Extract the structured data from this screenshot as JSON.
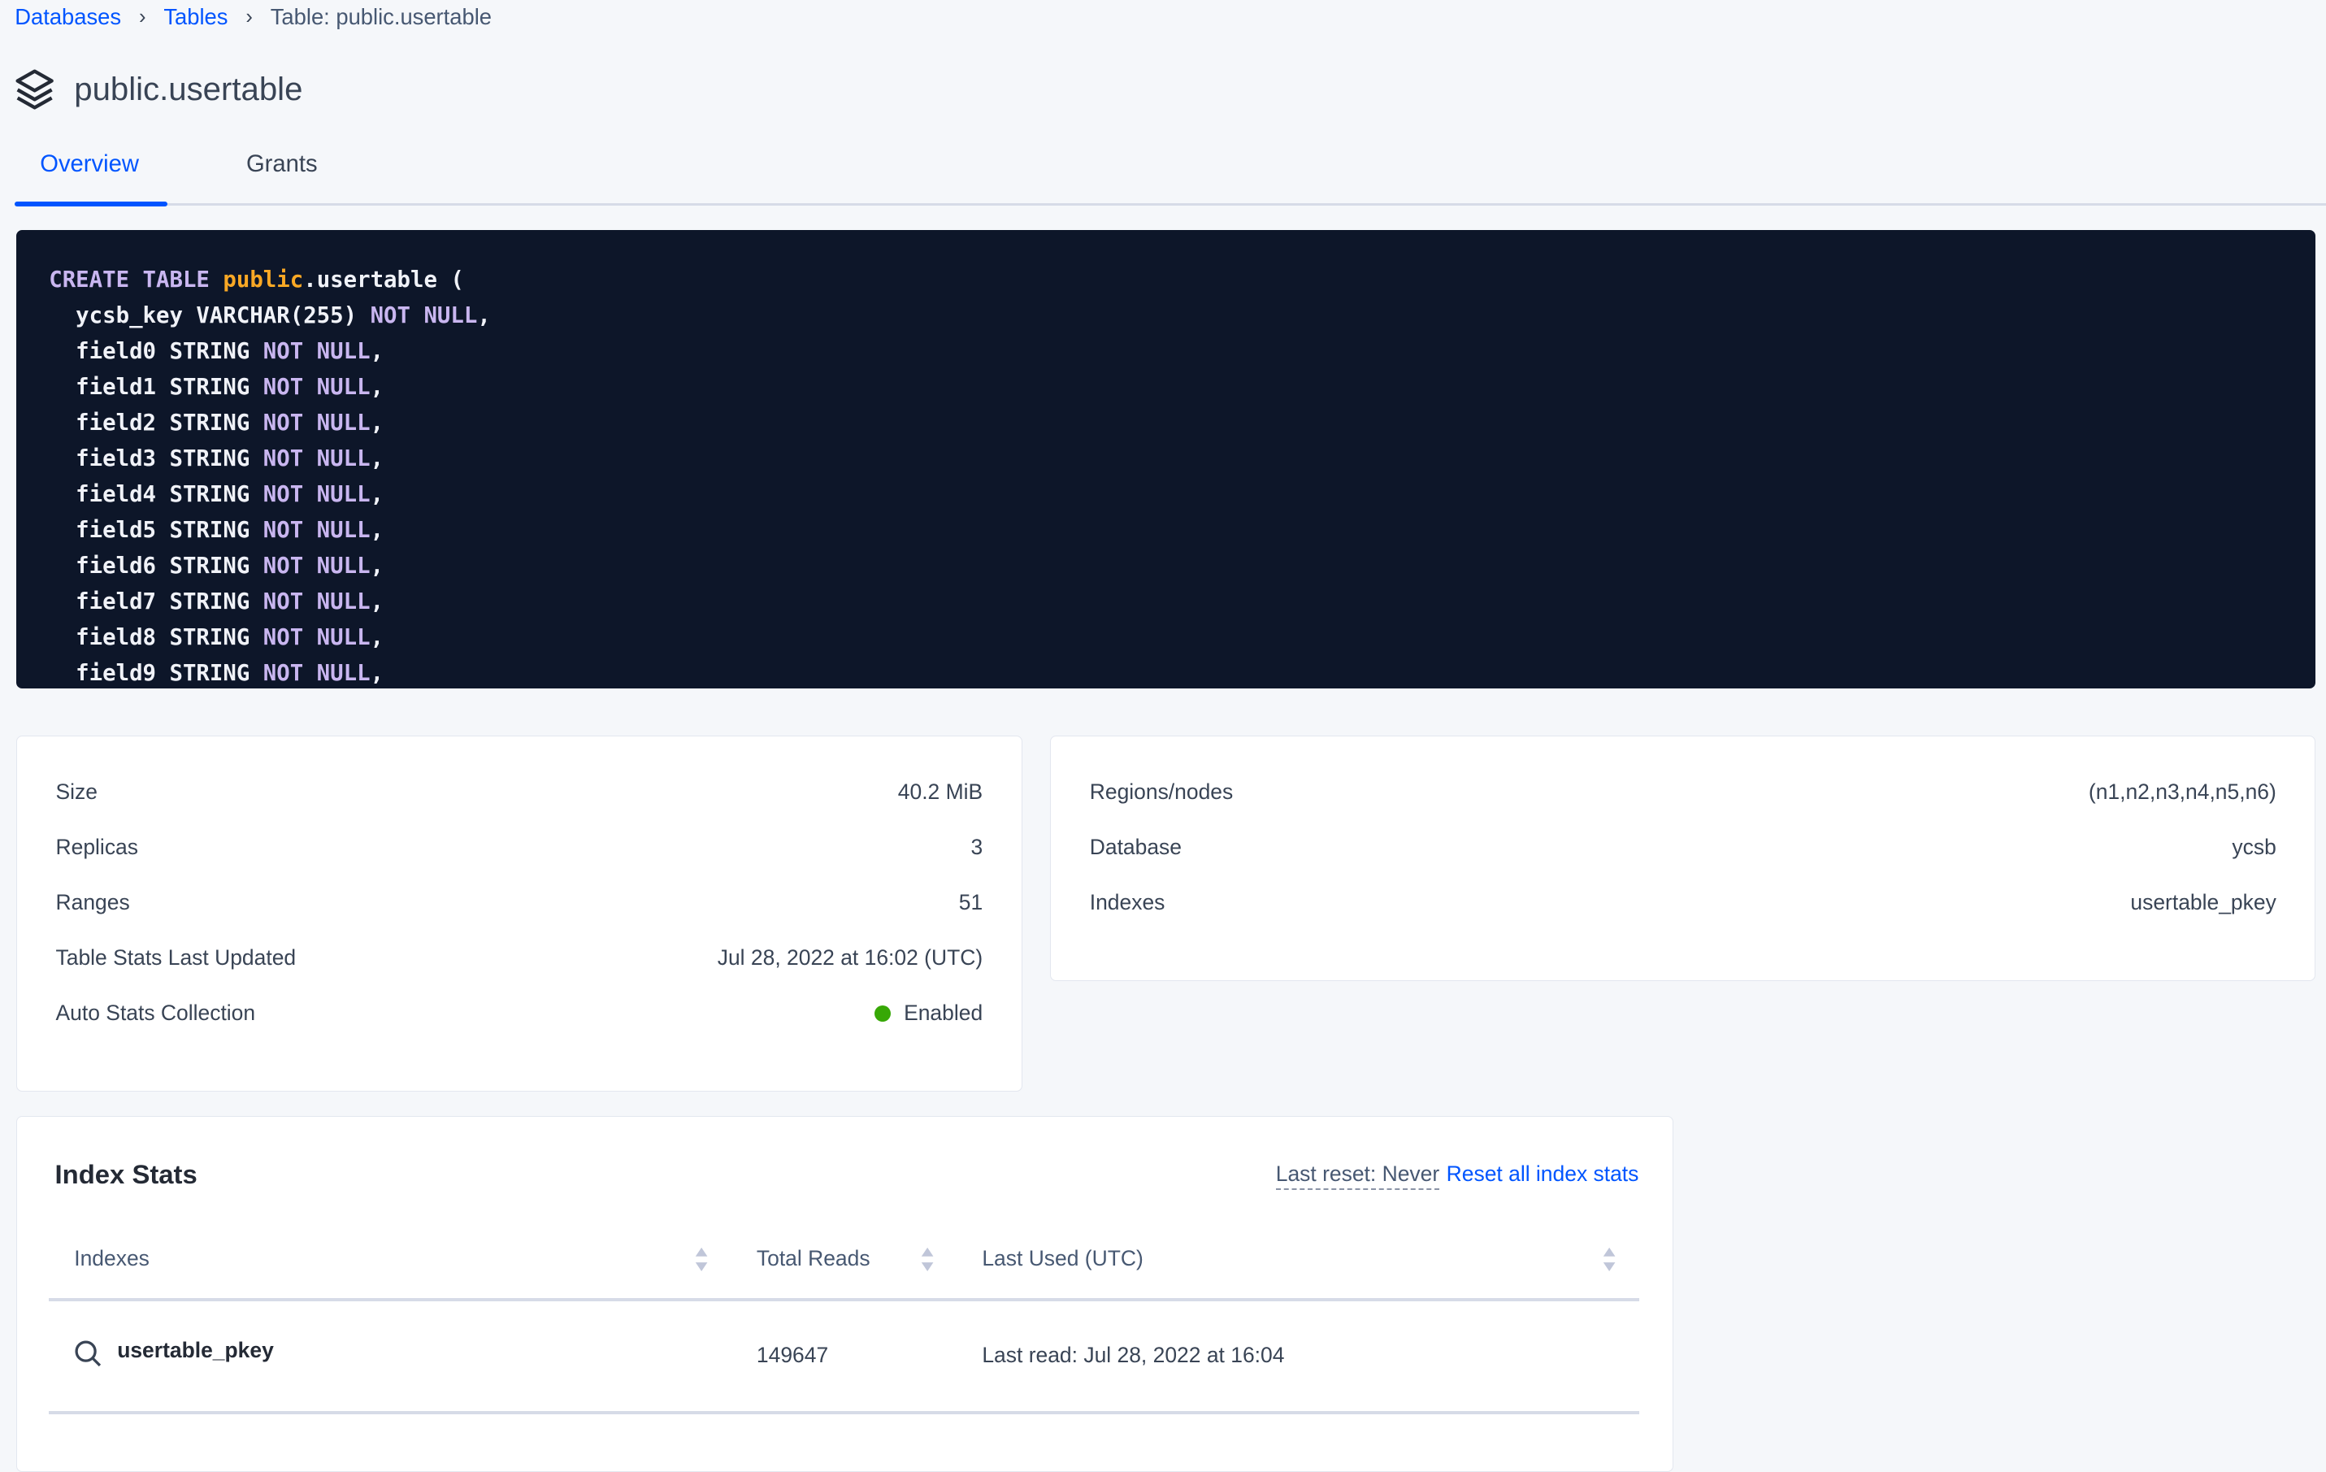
{
  "breadcrumb": {
    "items": [
      "Databases",
      "Tables"
    ],
    "current": "Table: public.usertable"
  },
  "page": {
    "title": "public.usertable",
    "icon": "stack-layers-icon"
  },
  "tabs": [
    {
      "label": "Overview",
      "active": true
    },
    {
      "label": "Grants",
      "active": false
    }
  ],
  "code": {
    "lines": [
      [
        [
          "kw",
          "CREATE TABLE "
        ],
        [
          "ns",
          "public"
        ],
        [
          "txt",
          ".usertable ("
        ]
      ],
      [
        [
          "txt",
          "  ycsb_key VARCHAR(255) "
        ],
        [
          "kw",
          "NOT NULL"
        ],
        [
          "txt",
          ","
        ]
      ],
      [
        [
          "txt",
          "  field0 STRING "
        ],
        [
          "kw",
          "NOT NULL"
        ],
        [
          "txt",
          ","
        ]
      ],
      [
        [
          "txt",
          "  field1 STRING "
        ],
        [
          "kw",
          "NOT NULL"
        ],
        [
          "txt",
          ","
        ]
      ],
      [
        [
          "txt",
          "  field2 STRING "
        ],
        [
          "kw",
          "NOT NULL"
        ],
        [
          "txt",
          ","
        ]
      ],
      [
        [
          "txt",
          "  field3 STRING "
        ],
        [
          "kw",
          "NOT NULL"
        ],
        [
          "txt",
          ","
        ]
      ],
      [
        [
          "txt",
          "  field4 STRING "
        ],
        [
          "kw",
          "NOT NULL"
        ],
        [
          "txt",
          ","
        ]
      ],
      [
        [
          "txt",
          "  field5 STRING "
        ],
        [
          "kw",
          "NOT NULL"
        ],
        [
          "txt",
          ","
        ]
      ],
      [
        [
          "txt",
          "  field6 STRING "
        ],
        [
          "kw",
          "NOT NULL"
        ],
        [
          "txt",
          ","
        ]
      ],
      [
        [
          "txt",
          "  field7 STRING "
        ],
        [
          "kw",
          "NOT NULL"
        ],
        [
          "txt",
          ","
        ]
      ],
      [
        [
          "txt",
          "  field8 STRING "
        ],
        [
          "kw",
          "NOT NULL"
        ],
        [
          "txt",
          ","
        ]
      ],
      [
        [
          "txt",
          "  field9 STRING "
        ],
        [
          "kw",
          "NOT NULL"
        ],
        [
          "txt",
          ","
        ]
      ]
    ],
    "colors": {
      "keyword": "#c9b6f0",
      "namespace": "#f9a825",
      "background": "#0d1629"
    }
  },
  "summary_left": [
    {
      "label": "Size",
      "value": "40.2 MiB"
    },
    {
      "label": "Replicas",
      "value": "3"
    },
    {
      "label": "Ranges",
      "value": "51"
    },
    {
      "label": "Table Stats Last Updated",
      "value": "Jul 28, 2022 at 16:02 (UTC)"
    },
    {
      "label": "Auto Stats Collection",
      "value": "Enabled",
      "status_color": "#37a806"
    }
  ],
  "summary_right": [
    {
      "label": "Regions/nodes",
      "value": "(n1,n2,n3,n4,n5,n6)"
    },
    {
      "label": "Database",
      "value": "ycsb"
    },
    {
      "label": "Indexes",
      "value": "usertable_pkey"
    }
  ],
  "index_stats": {
    "title": "Index Stats",
    "last_reset": "Last reset: Never",
    "reset_link": "Reset all index stats",
    "columns": [
      "Indexes",
      "Total Reads",
      "Last Used (UTC)"
    ],
    "rows": [
      {
        "index": "usertable_pkey",
        "total_reads": "149647",
        "last_used": "Last read: Jul 28, 2022 at 16:04"
      }
    ]
  }
}
